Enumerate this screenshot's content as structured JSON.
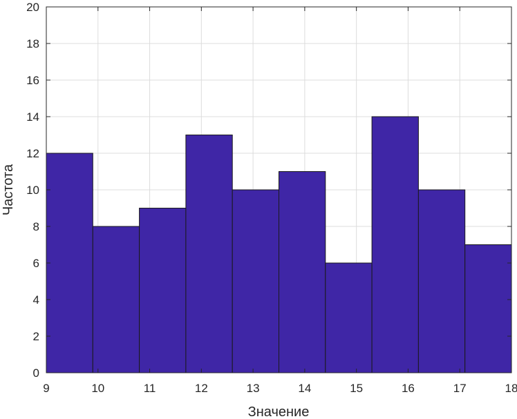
{
  "chart_data": {
    "type": "bar",
    "subtype": "histogram",
    "title": "",
    "xlabel": "Значение",
    "ylabel": "Частота",
    "bin_edges": [
      9.0,
      9.9,
      10.8,
      11.7,
      12.6,
      13.5,
      14.4,
      15.3,
      16.2,
      17.1,
      18.0
    ],
    "values": [
      12,
      8,
      9,
      13,
      10,
      11,
      6,
      14,
      10,
      7
    ],
    "xlim": [
      9,
      18
    ],
    "ylim": [
      0,
      20
    ],
    "xticks": [
      9,
      10,
      11,
      12,
      13,
      14,
      15,
      16,
      17,
      18
    ],
    "yticks": [
      0,
      2,
      4,
      6,
      8,
      10,
      12,
      14,
      16,
      18,
      20
    ],
    "grid": true,
    "bar_color": "#3f26a6",
    "bar_edge_color": "#1a1a1a",
    "grid_color": "#dcdcdc",
    "axis_color": "#262626"
  }
}
